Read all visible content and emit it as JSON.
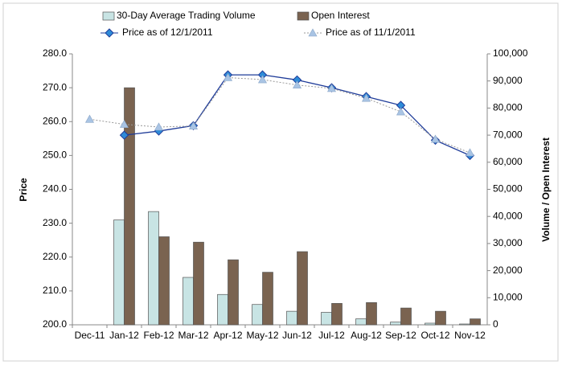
{
  "chart_data": {
    "type": "bar_line",
    "categories": [
      "Dec-11",
      "Jan-12",
      "Feb-12",
      "Mar-12",
      "Apr-12",
      "May-12",
      "Jun-12",
      "Jul-12",
      "Aug-12",
      "Sep-12",
      "Oct-12",
      "Nov-12"
    ],
    "ylabel": "Price",
    "y2label": "Volume / Open Interest",
    "ylim": [
      200,
      280
    ],
    "yticks": [
      {
        "value": 200,
        "label": "200.0"
      },
      {
        "value": 210,
        "label": "210.0"
      },
      {
        "value": 220,
        "label": "220.0"
      },
      {
        "value": 230,
        "label": "230.0"
      },
      {
        "value": 240,
        "label": "240.0"
      },
      {
        "value": 250,
        "label": "250.0"
      },
      {
        "value": 260,
        "label": "260.0"
      },
      {
        "value": 270,
        "label": "270.0"
      },
      {
        "value": 280,
        "label": "280.0"
      }
    ],
    "y2lim": [
      0,
      100000
    ],
    "y2ticks": [
      0,
      {
        "value": 10000,
        "label": "10,000"
      },
      {
        "value": 20000,
        "label": "20,000"
      },
      {
        "value": 30000,
        "label": "30,000"
      },
      {
        "value": 40000,
        "label": "40,000"
      },
      {
        "value": 50000,
        "label": "50,000"
      },
      {
        "value": 60000,
        "label": "60,000"
      },
      {
        "value": 70000,
        "label": "70,000"
      },
      {
        "value": 80000,
        "label": "80,000"
      },
      {
        "value": 90000,
        "label": "90,000"
      },
      {
        "value": 100000,
        "label": "100,000"
      }
    ],
    "series": [
      {
        "name": "30-Day Average Trading Volume",
        "type": "bar",
        "axis": "y2",
        "color": "#c8e4e4",
        "values": [
          null,
          38700,
          41800,
          17500,
          11200,
          7500,
          5000,
          4600,
          2200,
          1000,
          600,
          300
        ]
      },
      {
        "name": "Open Interest",
        "type": "bar",
        "axis": "y2",
        "color": "#7a6350",
        "values": [
          null,
          87500,
          32500,
          30500,
          24000,
          19400,
          27000,
          7900,
          8200,
          6200,
          5000,
          2200
        ]
      },
      {
        "name": "Price as of 12/1/2011",
        "type": "line",
        "color": "#1f3c99",
        "values": [
          null,
          256,
          257.2,
          258.8,
          273.8,
          273.8,
          272.3,
          270,
          267.4,
          264.8,
          254.5,
          250
        ]
      },
      {
        "name": "Price as of 11/1/2011",
        "type": "line",
        "color": "#a9c4e4",
        "values": [
          260.7,
          259.2,
          258.4,
          258.7,
          273,
          272.4,
          270.8,
          269.8,
          266.9,
          262.9,
          254.8,
          250.8
        ]
      }
    ]
  }
}
